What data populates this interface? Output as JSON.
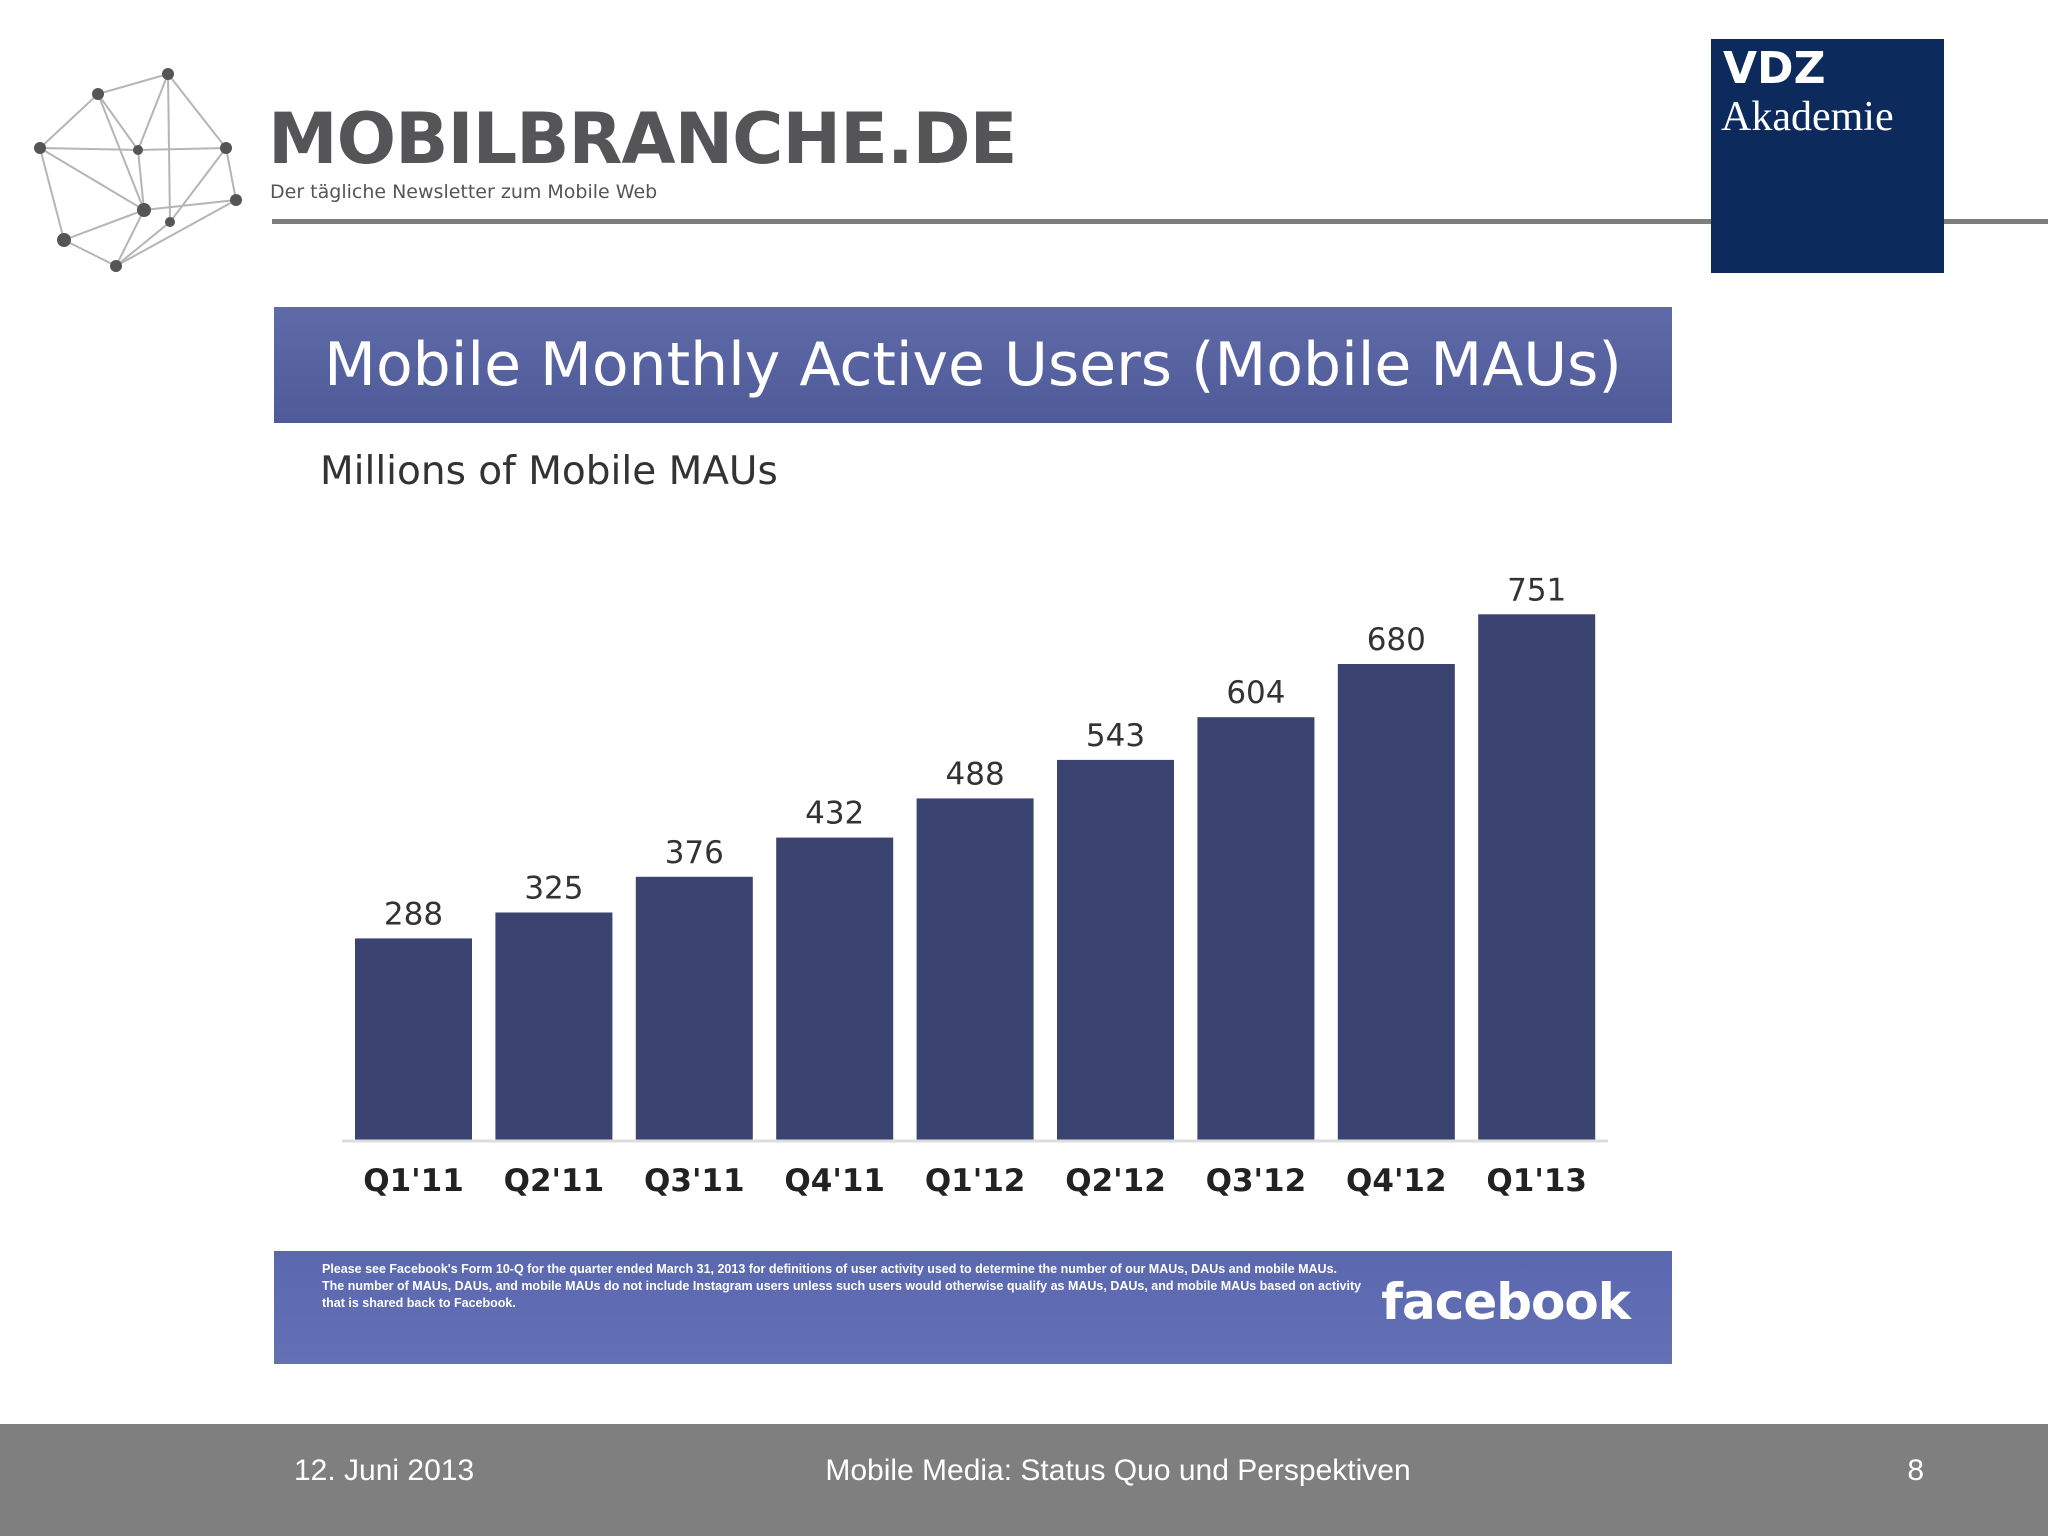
{
  "header": {
    "brand_title": "MOBILBRANCHE.DE",
    "brand_subtitle": "Der tägliche Newsletter zum Mobile Web",
    "partner_line1": "VDZ",
    "partner_line2": "Akademie"
  },
  "chart_data": {
    "type": "bar",
    "title": "Mobile Monthly Active Users (Mobile MAUs)",
    "subtitle": "Millions of Mobile MAUs",
    "categories": [
      "Q1'11",
      "Q2'11",
      "Q3'11",
      "Q4'11",
      "Q1'12",
      "Q2'12",
      "Q3'12",
      "Q4'12",
      "Q1'13"
    ],
    "values": [
      288,
      325,
      376,
      432,
      488,
      543,
      604,
      680,
      751
    ],
    "data_labels": [
      "288",
      "325",
      "376",
      "432",
      "488",
      "543",
      "604",
      "680",
      "751"
    ],
    "xlabel": "",
    "ylabel": "",
    "ylim": [
      0,
      800
    ],
    "grid": false,
    "legend": "none",
    "bar_color": "#3b4371"
  },
  "footnote": "Please see Facebook's Form 10-Q for the quarter ended March 31, 2013 for definitions of user activity used to determine the number of our MAUs, DAUs and mobile MAUs. The number of MAUs, DAUs, and mobile MAUs do not include Instagram users unless such users would otherwise qualify as MAUs, DAUs, and mobile MAUs based on activity that is shared back to Facebook.",
  "source_logo": "facebook",
  "footer": {
    "date": "12. Juni 2013",
    "title": "Mobile Media: Status Quo und Perspektiven",
    "page": "8"
  },
  "colors": {
    "band": "#5560a0",
    "partner_box": "#0c2a5b",
    "footer": "#7f7f7f",
    "bars": "#3b4371"
  }
}
